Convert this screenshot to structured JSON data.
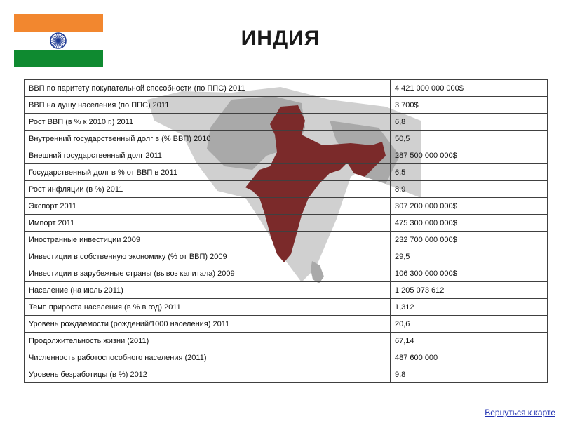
{
  "page": {
    "title": "ИНДИЯ",
    "back_link": "Вернуться к карте"
  },
  "flag": {
    "colors": {
      "saffron": "#f2872f",
      "white": "#ffffff",
      "green": "#0f8a30",
      "chakra": "#1f3a93"
    }
  },
  "map": {
    "colors": {
      "india": "#7b2a2a",
      "neighbors": "#a9a9a9",
      "region": "#d0d0d0"
    }
  },
  "table": {
    "rows": [
      {
        "label": "ВВП  по  паритету покупательной  способности  (по ППС) 2011",
        "value": "4 421 000 000 000$"
      },
      {
        "label": "ВВП на душу населения (по ППС) 2011",
        "value": "3 700$"
      },
      {
        "label": "Рост ВВП (в % к 2010 г.) 2011",
        "value": "6,8"
      },
      {
        "label": "Внутренний государственный долг в (% ВВП) 2010",
        "value": "50,5"
      },
      {
        "label": "Внешний государственный долг 2011",
        "value": "287 500 000 000$"
      },
      {
        "label": "Государственный долг в  % от ВВП в 2011",
        "value": "6,5"
      },
      {
        "label": "Рост инфляции (в %) 2011",
        "value": "8,9"
      },
      {
        "label": "Экспорт 2011",
        "value": "307 200 000 000$"
      },
      {
        "label": "Импорт 2011",
        "value": "475 300 000 000$"
      },
      {
        "label": "Иностранные инвестиции 2009",
        "value": "232 700 000 000$"
      },
      {
        "label": "Инвестиции в собственную экономику (% от ВВП) 2009",
        "value": "29,5"
      },
      {
        "label": "Инвестиции в зарубежные страны (вывоз капитала) 2009",
        "value": "106 300 000 000$"
      },
      {
        "label": "Население (на июль 2011)",
        "value": "1 205 073 612"
      },
      {
        "label": "Темп прироста населения (в % в год) 2011",
        "value": "1,312"
      },
      {
        "label": "Уровень рождаемости (рождений/1000 населения) 2011",
        "value": "20,6"
      },
      {
        "label": "Продолжительность жизни (2011)",
        "value": "67,14"
      },
      {
        "label": "Численность работоспособного населения (2011)",
        "value": "487 600 000"
      },
      {
        "label": "Уровень безработицы (в %) 2012",
        "value": "9,8"
      }
    ]
  }
}
